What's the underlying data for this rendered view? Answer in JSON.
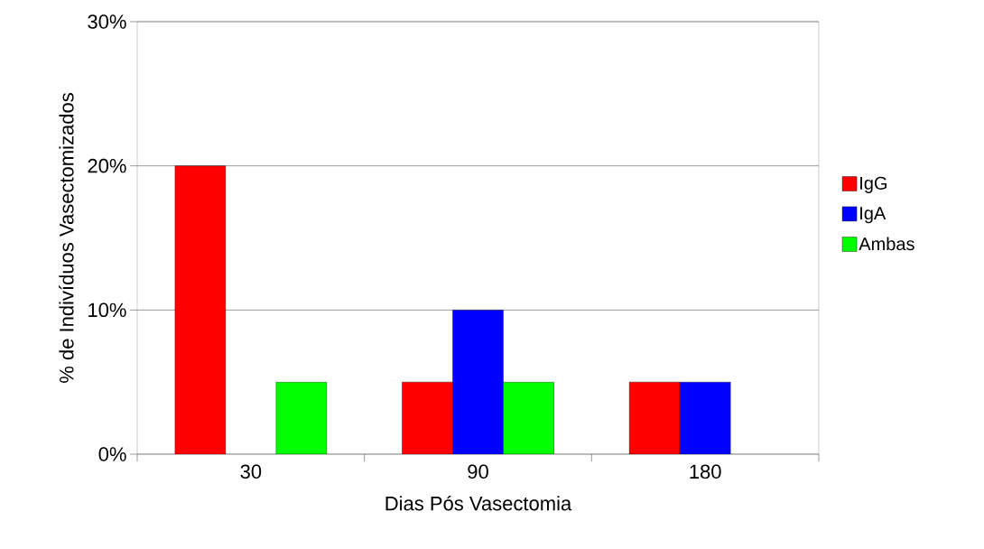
{
  "chart_data": {
    "type": "bar",
    "xlabel": "Dias Pós Vasectomia",
    "ylabel": "% de Indivíduos Vasectomizados",
    "categories": [
      "30",
      "90",
      "180"
    ],
    "series": [
      {
        "name": "IgG",
        "color": "#ff0000",
        "values": [
          20,
          5,
          5
        ]
      },
      {
        "name": "IgA",
        "color": "#0000ff",
        "values": [
          null,
          10,
          5
        ]
      },
      {
        "name": "Ambas",
        "color": "#00ff00",
        "values": [
          5,
          5,
          null
        ]
      }
    ],
    "ylim": [
      0,
      30
    ],
    "yticks": [
      {
        "value": 0,
        "label": "0%"
      },
      {
        "value": 10,
        "label": "10%"
      },
      {
        "value": 20,
        "label": "20%"
      },
      {
        "value": 30,
        "label": "30%"
      }
    ],
    "grid": "y",
    "legend": "right"
  }
}
